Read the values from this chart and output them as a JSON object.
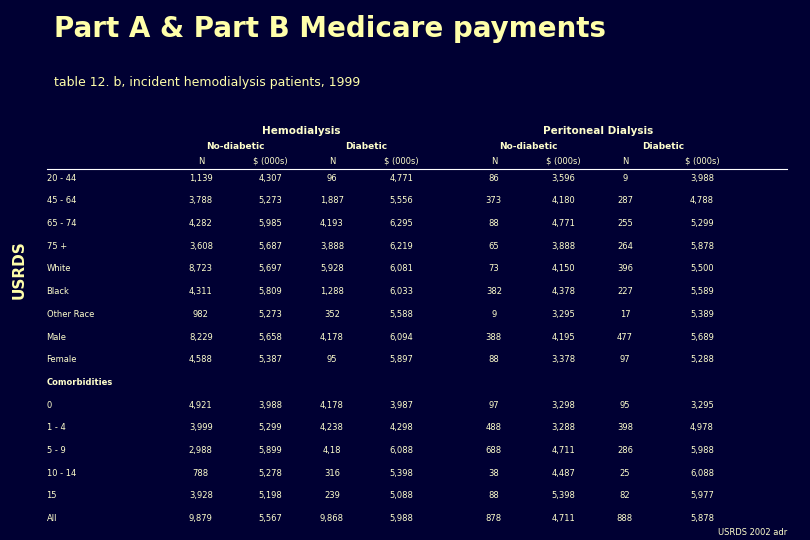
{
  "title": "Part A & Part B Medicare payments",
  "subtitle": "table 12. b, incident hemodialysis patients, 1999",
  "bg_color": "#000033",
  "header_bg": "#001a33",
  "sidebar_bg": "#003300",
  "title_color": "#ffffaa",
  "subtitle_color": "#ffffaa",
  "text_color": "#ffffcc",
  "usrds_sidebar": "USRDS",
  "footer": "USRDS 2002 adr",
  "row_labels": [
    "20 - 44",
    "45 - 64",
    "65 - 74",
    "75 +",
    "White",
    "Black",
    "Other Race",
    "Male",
    "Female",
    "Comorbidities",
    "0",
    "1 - 4",
    "5 - 9",
    "10 - 14",
    "15",
    "All"
  ],
  "data": [
    [
      "1,139",
      "4,307",
      "96",
      "4,771",
      "86",
      "3,596",
      "9",
      "3,988"
    ],
    [
      "3,788",
      "5,273",
      "1,887",
      "5,556",
      "373",
      "4,180",
      "287",
      "4,788"
    ],
    [
      "4,282",
      "5,985",
      "4,193",
      "6,295",
      "88",
      "4,771",
      "255",
      "5,299"
    ],
    [
      "3,608",
      "5,687",
      "3,888",
      "6,219",
      "65",
      "3,888",
      "264",
      "5,878"
    ],
    [
      "8,723",
      "5,697",
      "5,928",
      "6,081",
      "73",
      "4,150",
      "396",
      "5,500"
    ],
    [
      "4,311",
      "5,809",
      "1,288",
      "6,033",
      "382",
      "4,378",
      "227",
      "5,589"
    ],
    [
      "982",
      "5,273",
      "352",
      "5,588",
      "9",
      "3,295",
      "17",
      "5,389"
    ],
    [
      "8,229",
      "5,658",
      "4,178",
      "6,094",
      "388",
      "4,195",
      "477",
      "5,689"
    ],
    [
      "4,588",
      "5,387",
      "95",
      "5,897",
      "88",
      "3,378",
      "97",
      "5,288"
    ],
    [
      "",
      "",
      "",
      "",
      "",
      "",
      "",
      ""
    ],
    [
      "4,921",
      "3,988",
      "4,178",
      "3,987",
      "97",
      "3,298",
      "95",
      "3,295"
    ],
    [
      "3,999",
      "5,299",
      "4,238",
      "4,298",
      "488",
      "3,288",
      "398",
      "4,978"
    ],
    [
      "2,988",
      "5,899",
      "4,18",
      "6,088",
      "688",
      "4,711",
      "286",
      "5,988"
    ],
    [
      "788",
      "5,278",
      "316",
      "5,398",
      "38",
      "4,487",
      "25",
      "6,088"
    ],
    [
      "3,928",
      "5,198",
      "239",
      "5,088",
      "88",
      "5,398",
      "82",
      "5,977"
    ],
    [
      "9,879",
      "5,567",
      "9,868",
      "5,988",
      "878",
      "4,711",
      "888",
      "5,878"
    ]
  ]
}
